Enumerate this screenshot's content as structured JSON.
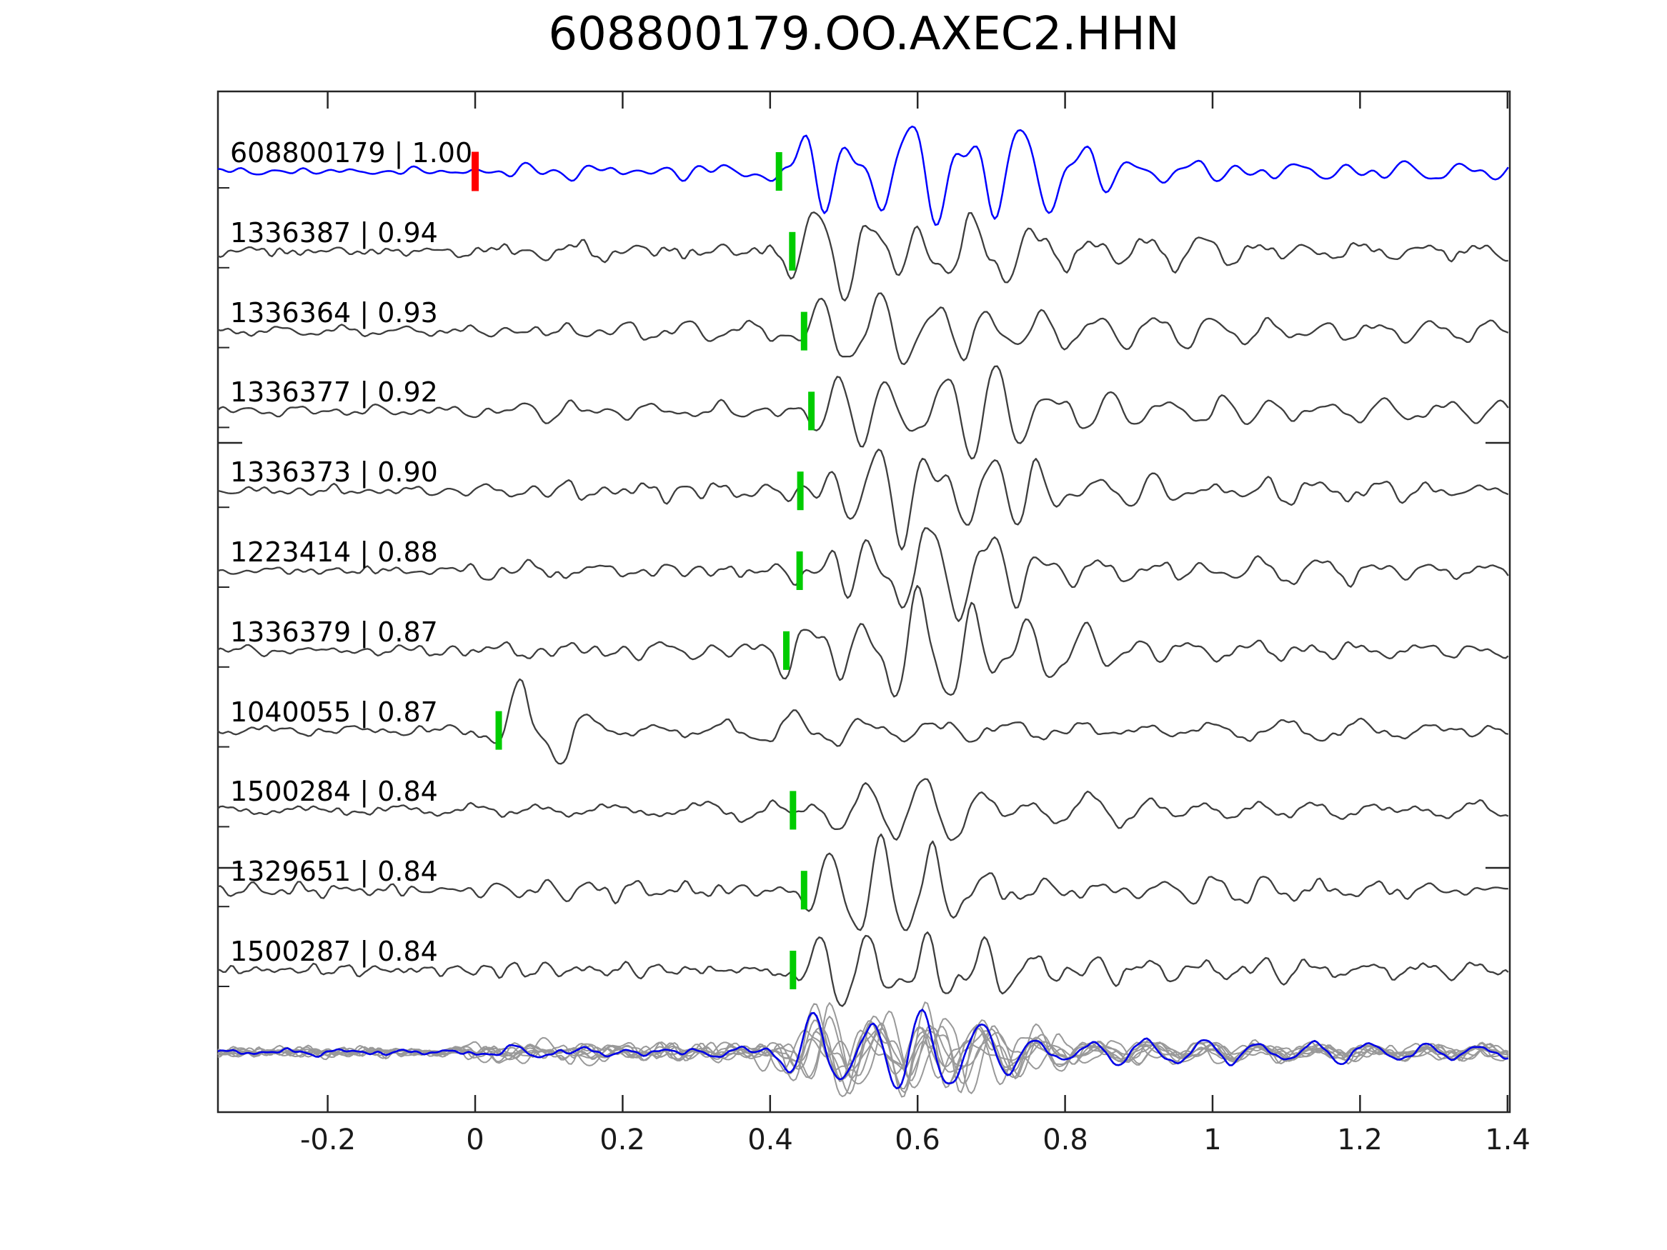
{
  "chart_data": {
    "type": "line",
    "subtype": "seismic-waveform-stack",
    "title": "608800179.OO.AXEC2.HHN",
    "station_channel": "OO.AXEC2.HHN",
    "template_id": "608800179",
    "xlabel": "",
    "ylabel": "",
    "xlim": [
      -0.35,
      1.4
    ],
    "x_ticks": [
      -0.2,
      0,
      0.2,
      0.4,
      0.6,
      0.8,
      1,
      1.2,
      1.4
    ],
    "grid": false,
    "legend": false,
    "traces": [
      {
        "id": "608800179",
        "cc": "1.00",
        "display": "608800179 | 1.00",
        "role": "template",
        "pick_time": 0.412,
        "origin_time": 0.0
      },
      {
        "id": "1336387",
        "cc": "0.94",
        "display": "1336387 | 0.94",
        "role": "detection",
        "pick_time": 0.43
      },
      {
        "id": "1336364",
        "cc": "0.93",
        "display": "1336364 | 0.93",
        "role": "detection",
        "pick_time": 0.446
      },
      {
        "id": "1336377",
        "cc": "0.92",
        "display": "1336377 | 0.92",
        "role": "detection",
        "pick_time": 0.456
      },
      {
        "id": "1336373",
        "cc": "0.90",
        "display": "1336373 | 0.90",
        "role": "detection",
        "pick_time": 0.441
      },
      {
        "id": "1223414",
        "cc": "0.88",
        "display": "1223414 | 0.88",
        "role": "detection",
        "pick_time": 0.44
      },
      {
        "id": "1336379",
        "cc": "0.87",
        "display": "1336379 | 0.87",
        "role": "detection",
        "pick_time": 0.422
      },
      {
        "id": "1040055",
        "cc": "0.87",
        "display": "1040055 | 0.87",
        "role": "detection",
        "pick_time": 0.032
      },
      {
        "id": "1500284",
        "cc": "0.84",
        "display": "1500284 | 0.84",
        "role": "detection",
        "pick_time": 0.431
      },
      {
        "id": "1329651",
        "cc": "0.84",
        "display": "1329651 | 0.84",
        "role": "detection",
        "pick_time": 0.446
      },
      {
        "id": "1500287",
        "cc": "0.84",
        "display": "1500287 | 0.84",
        "role": "detection",
        "pick_time": 0.431
      }
    ],
    "stack_row": {
      "description": "all detection waveforms overlaid with template highlighted"
    }
  },
  "axis": {
    "x_tick_labels": [
      "-0.2",
      "0",
      "0.2",
      "0.4",
      "0.6",
      "0.8",
      "1",
      "1.2",
      "1.4"
    ]
  },
  "colors": {
    "template_trace": "#0000ff",
    "detection_trace": "#3d3d3d",
    "stack_gray": "#999999",
    "stack_highlight": "#0000e6",
    "pick_marker_green": "#00cc00",
    "origin_marker_red": "#ff0000",
    "frame": "#262626",
    "background": "#ffffff"
  }
}
